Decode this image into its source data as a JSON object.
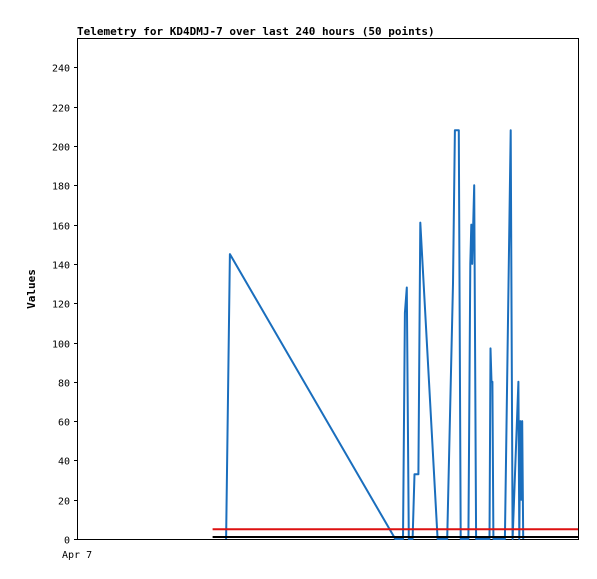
{
  "chart_data": {
    "type": "line",
    "title": "Telemetry for KD4DMJ-7 over last 240 hours (50 points)",
    "ylabel": "Values",
    "xlabel": "",
    "x_tick_labels": [
      "Apr 7"
    ],
    "ylim": [
      0,
      255
    ],
    "xlim": [
      0,
      260
    ],
    "y_ticks": [
      0,
      20,
      40,
      60,
      80,
      100,
      120,
      140,
      160,
      180,
      200,
      220,
      240
    ],
    "grid": false,
    "series": [
      {
        "color": "#1a6ebd",
        "x": [
          77,
          79,
          165,
          169,
          170,
          171,
          172,
          174,
          175,
          177,
          178,
          187,
          188,
          192,
          195,
          196,
          198,
          199,
          201,
          202,
          203,
          204,
          204.5,
          205,
          206,
          207,
          212,
          214,
          214.5,
          215,
          215.5,
          216,
          222,
          224,
          225,
          226,
          229,
          229.5,
          230,
          230.5,
          231,
          231.5
        ],
        "y": [
          0,
          145,
          0,
          0,
          115,
          128,
          0,
          0,
          33,
          33,
          161,
          0,
          0,
          0,
          130,
          208,
          208,
          0,
          0,
          0,
          0,
          140,
          160,
          140,
          180,
          0,
          0,
          0,
          97,
          80,
          80,
          0,
          0,
          140,
          208,
          0,
          80,
          0,
          60,
          20,
          60,
          0
        ]
      },
      {
        "color": "#dd1111",
        "x": [
          70,
          260
        ],
        "y": [
          5,
          5
        ]
      },
      {
        "color": "#000000",
        "x": [
          70,
          260
        ],
        "y": [
          1,
          1
        ]
      }
    ]
  }
}
